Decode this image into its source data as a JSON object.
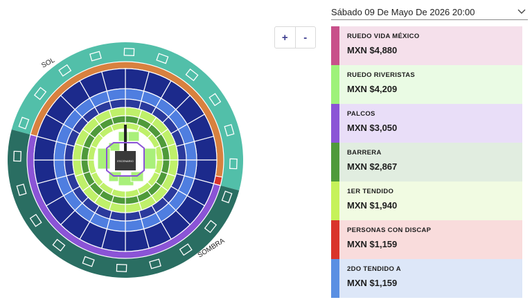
{
  "event": {
    "date_label": "Sábado 09 De Mayo De 2026 20:00"
  },
  "map": {
    "labels": {
      "sun": "SOL",
      "shade": "SOMBRA",
      "stage": "ESCENARIO"
    }
  },
  "zoom": {
    "in_label": "+",
    "out_label": "-"
  },
  "price_list": [
    {
      "name": "RUEDO VIDA MÉXICO",
      "price": "MXN $4,880",
      "color": "#c8508a",
      "bg": "#f5e0eb"
    },
    {
      "name": "RUEDO RIVERISTAS",
      "price": "MXN $4,209",
      "color": "#9ef27a",
      "bg": "#eafbe4"
    },
    {
      "name": "PALCOS",
      "price": "MXN $3,050",
      "color": "#8b54d6",
      "bg": "#e9def8"
    },
    {
      "name": "BARRERA",
      "price": "MXN $2,867",
      "color": "#4f9a3a",
      "bg": "#e1ede0"
    },
    {
      "name": "1ER TENDIDO",
      "price": "MXN $1,940",
      "color": "#c6f25a",
      "bg": "#f1fbe2"
    },
    {
      "name": "PERSONAS CON DISCAP",
      "price": "MXN $1,159",
      "color": "#d9342a",
      "bg": "#f9dcdc"
    },
    {
      "name": "2DO TENDIDO A",
      "price": "MXN $1,159",
      "color": "#5a8fe3",
      "bg": "#dde7f8"
    }
  ]
}
